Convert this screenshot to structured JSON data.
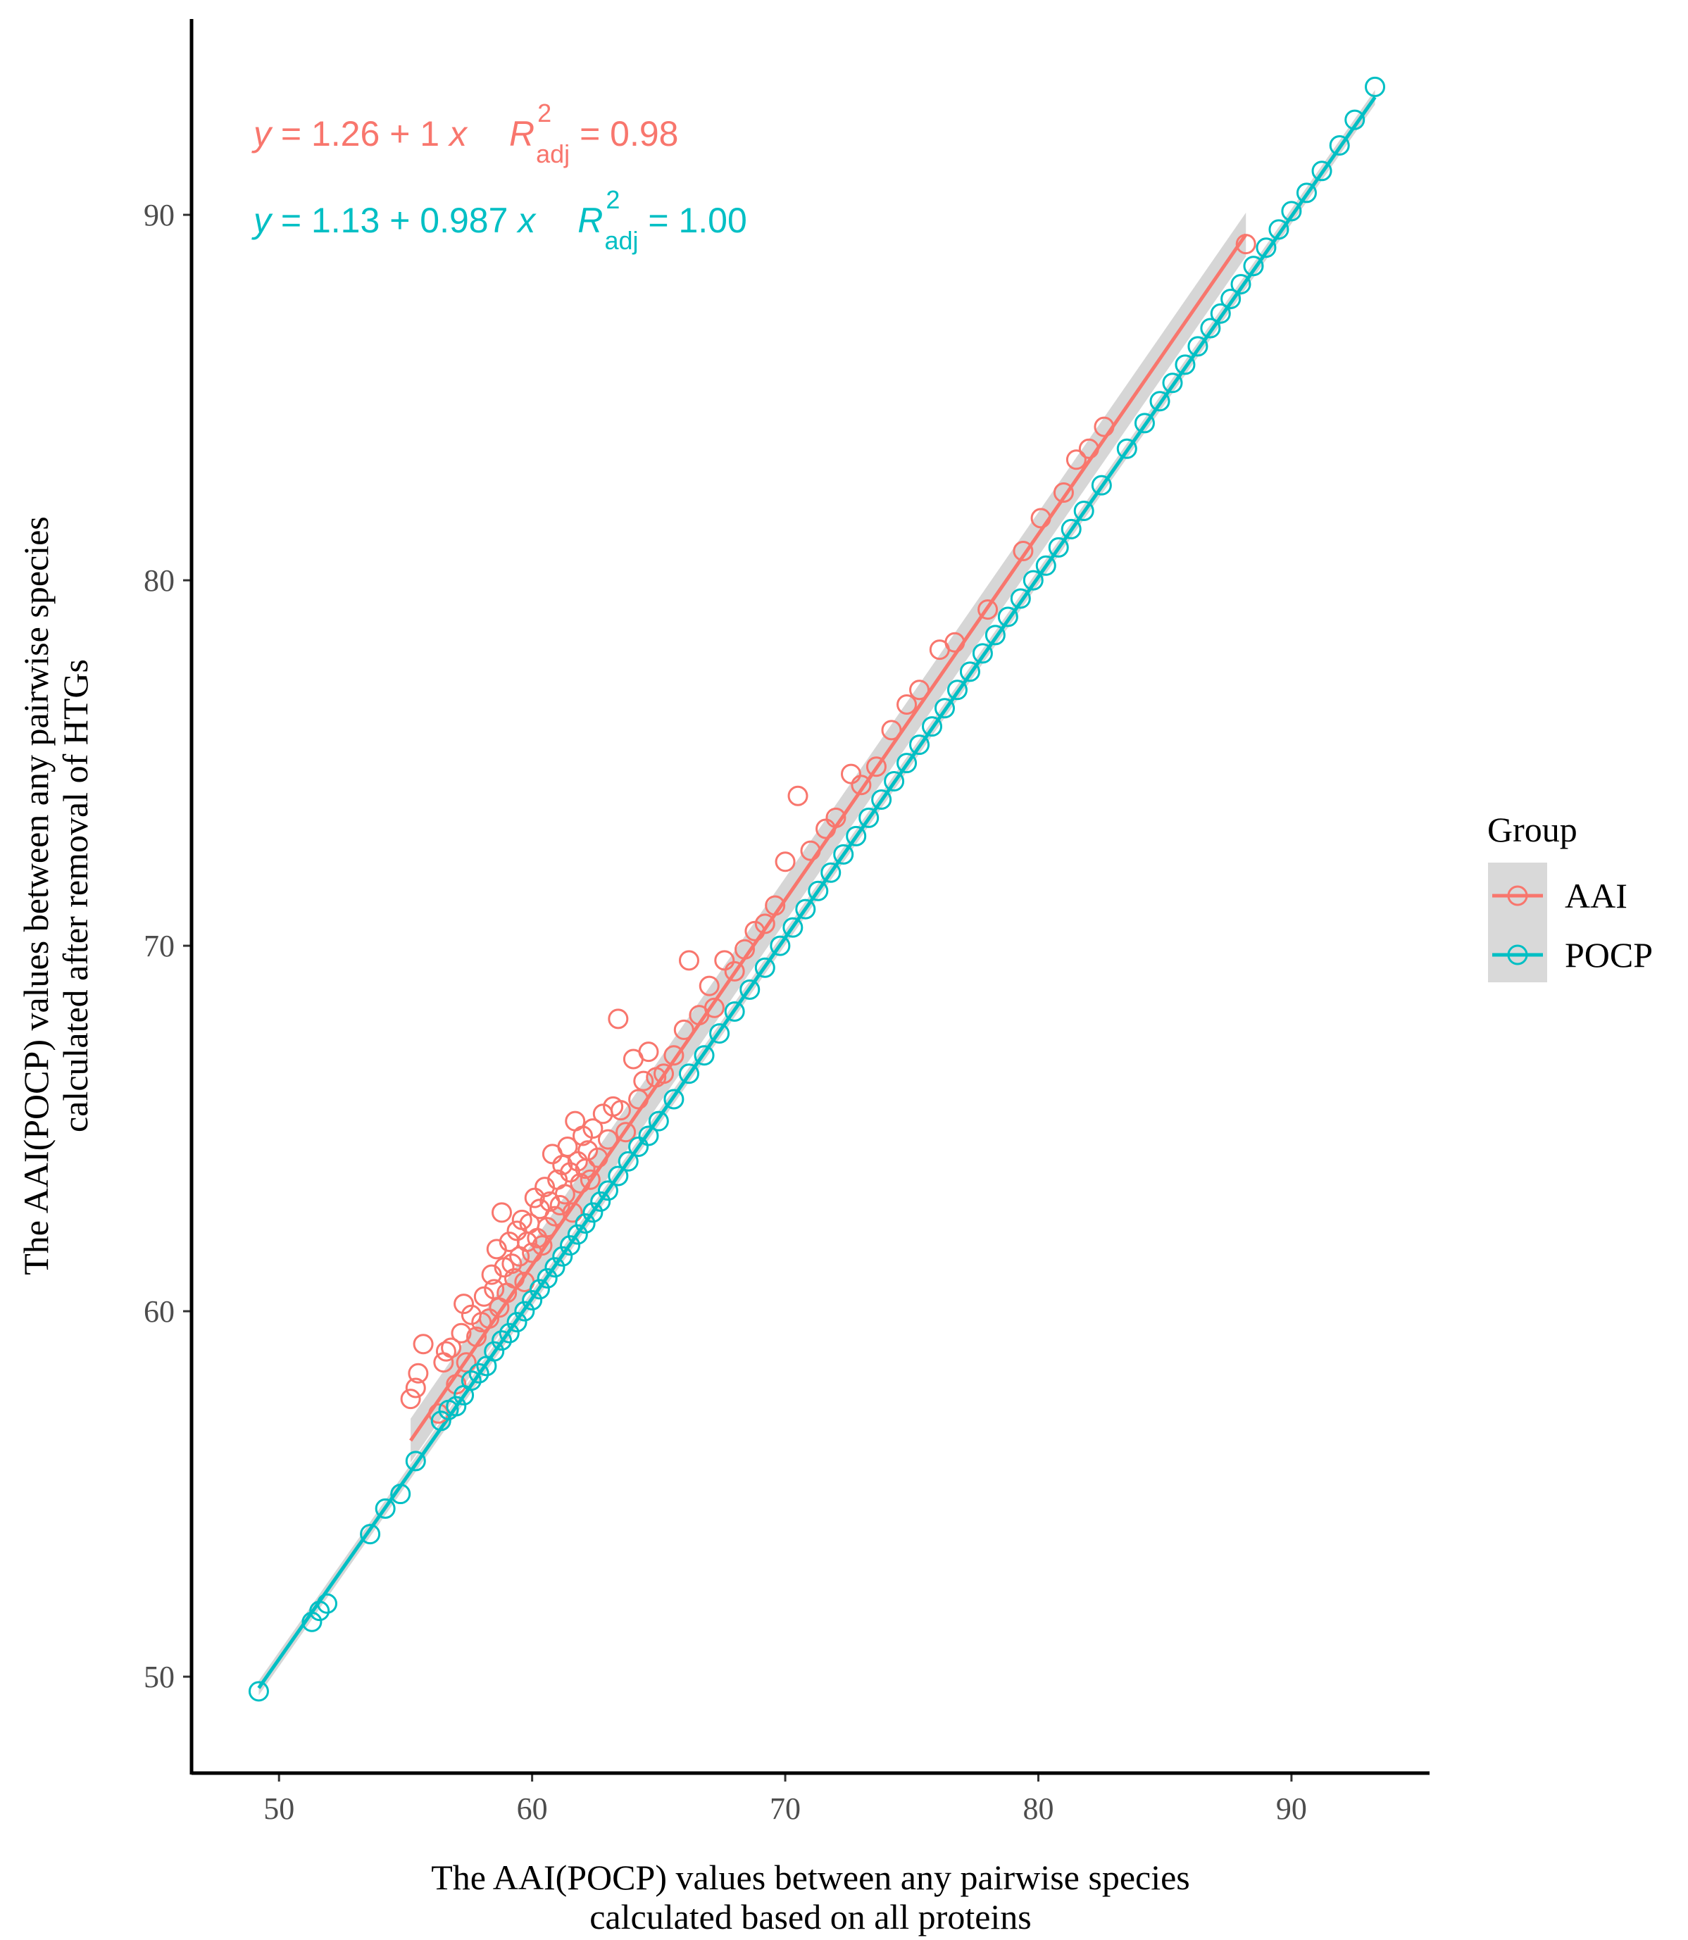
{
  "chart_data": {
    "type": "scatter",
    "xlabel": [
      "The AAI(POCP) values between any pairwise species",
      "calculated based on all proteins"
    ],
    "ylabel": [
      "The AAI(POCP) values between any pairwise species",
      "calculated after removal of HTGs"
    ],
    "xlim": [
      46.6,
      95.4
    ],
    "ylim": [
      47.4,
      95.3
    ],
    "x_ticks": [
      50,
      60,
      70,
      80,
      90
    ],
    "y_ticks": [
      50,
      60,
      70,
      80,
      90
    ],
    "x_tick_labels": [
      "50",
      "60",
      "70",
      "80",
      "90"
    ],
    "y_tick_labels": [
      "50",
      "60",
      "70",
      "80",
      "90"
    ],
    "grid": false,
    "legend": {
      "title": "Group",
      "position": "right",
      "entries": [
        "AAI",
        "POCP"
      ]
    },
    "series": [
      {
        "name": "AAI",
        "color": "#F8766D",
        "fit": {
          "intercept": 1.26,
          "slope": 1.0,
          "x_range": [
            55.2,
            88.2
          ]
        },
        "equation": {
          "lhs": "y",
          "eq": " = 1.26 + 1 ",
          "x": "x",
          "r": "R",
          "sup": "2",
          "sub": "adj",
          "val": " = 0.98"
        },
        "points": [
          [
            55.2,
            57.6
          ],
          [
            55.4,
            57.9
          ],
          [
            55.5,
            58.3
          ],
          [
            55.7,
            59.1
          ],
          [
            56.3,
            57.2
          ],
          [
            56.5,
            58.6
          ],
          [
            56.6,
            58.9
          ],
          [
            56.8,
            59.0
          ],
          [
            57.0,
            58.0
          ],
          [
            57.2,
            59.4
          ],
          [
            57.3,
            60.2
          ],
          [
            57.4,
            58.6
          ],
          [
            57.6,
            59.9
          ],
          [
            57.8,
            59.3
          ],
          [
            58.0,
            59.7
          ],
          [
            58.1,
            60.4
          ],
          [
            58.3,
            59.8
          ],
          [
            58.4,
            61.0
          ],
          [
            58.5,
            60.6
          ],
          [
            58.6,
            61.7
          ],
          [
            58.7,
            60.1
          ],
          [
            58.8,
            62.7
          ],
          [
            58.9,
            61.2
          ],
          [
            59.0,
            60.5
          ],
          [
            59.1,
            61.9
          ],
          [
            59.2,
            61.3
          ],
          [
            59.3,
            60.9
          ],
          [
            59.4,
            62.2
          ],
          [
            59.5,
            61.5
          ],
          [
            59.6,
            62.5
          ],
          [
            59.7,
            60.8
          ],
          [
            59.8,
            61.9
          ],
          [
            59.9,
            62.4
          ],
          [
            60.0,
            61.6
          ],
          [
            60.1,
            63.1
          ],
          [
            60.2,
            62.0
          ],
          [
            60.3,
            62.8
          ],
          [
            60.4,
            61.8
          ],
          [
            60.5,
            63.4
          ],
          [
            60.6,
            62.3
          ],
          [
            60.7,
            63.0
          ],
          [
            60.8,
            64.3
          ],
          [
            60.9,
            62.6
          ],
          [
            61.0,
            63.6
          ],
          [
            61.1,
            62.9
          ],
          [
            61.2,
            64.0
          ],
          [
            61.3,
            63.2
          ],
          [
            61.4,
            64.5
          ],
          [
            61.5,
            63.8
          ],
          [
            61.6,
            62.7
          ],
          [
            61.7,
            65.2
          ],
          [
            61.8,
            64.1
          ],
          [
            61.9,
            63.5
          ],
          [
            62.0,
            64.8
          ],
          [
            62.1,
            63.9
          ],
          [
            62.2,
            64.4
          ],
          [
            62.3,
            63.6
          ],
          [
            62.4,
            65.0
          ],
          [
            62.6,
            64.2
          ],
          [
            62.8,
            65.4
          ],
          [
            63.0,
            64.7
          ],
          [
            63.2,
            65.6
          ],
          [
            63.4,
            68.0
          ],
          [
            63.5,
            65.5
          ],
          [
            63.7,
            64.9
          ],
          [
            64.0,
            66.9
          ],
          [
            64.2,
            65.8
          ],
          [
            64.4,
            66.3
          ],
          [
            64.6,
            67.1
          ],
          [
            64.9,
            66.4
          ],
          [
            65.2,
            66.5
          ],
          [
            65.6,
            67.0
          ],
          [
            66.0,
            67.7
          ],
          [
            66.2,
            69.6
          ],
          [
            66.6,
            68.1
          ],
          [
            67.0,
            68.9
          ],
          [
            67.2,
            68.3
          ],
          [
            67.6,
            69.6
          ],
          [
            68.0,
            69.3
          ],
          [
            68.4,
            69.9
          ],
          [
            68.8,
            70.4
          ],
          [
            69.2,
            70.6
          ],
          [
            69.6,
            71.1
          ],
          [
            70.0,
            72.3
          ],
          [
            70.5,
            74.1
          ],
          [
            71.0,
            72.6
          ],
          [
            71.6,
            73.2
          ],
          [
            72.0,
            73.5
          ],
          [
            72.6,
            74.7
          ],
          [
            73.0,
            74.4
          ],
          [
            73.6,
            74.9
          ],
          [
            74.2,
            75.9
          ],
          [
            74.8,
            76.6
          ],
          [
            75.3,
            77.0
          ],
          [
            76.1,
            78.1
          ],
          [
            76.7,
            78.3
          ],
          [
            78.0,
            79.2
          ],
          [
            79.4,
            80.8
          ],
          [
            80.1,
            81.7
          ],
          [
            81.0,
            82.4
          ],
          [
            81.5,
            83.3
          ],
          [
            82.0,
            83.6
          ],
          [
            82.6,
            84.2
          ],
          [
            88.2,
            89.2
          ]
        ]
      },
      {
        "name": "POCP",
        "color": "#00BFC4",
        "fit": {
          "intercept": 1.13,
          "slope": 0.987,
          "x_range": [
            49.2,
            93.3
          ]
        },
        "equation": {
          "lhs": "y",
          "eq": " = 1.13 + 0.987 ",
          "x": "x",
          "r": "R",
          "sup": "2",
          "sub": "adj",
          "val": " = 1.00"
        },
        "points": [
          [
            49.2,
            49.6
          ],
          [
            51.3,
            51.5
          ],
          [
            51.6,
            51.8
          ],
          [
            51.9,
            52.0
          ],
          [
            53.6,
            53.9
          ],
          [
            54.2,
            54.6
          ],
          [
            54.8,
            55.0
          ],
          [
            55.4,
            55.9
          ],
          [
            56.4,
            57.0
          ],
          [
            56.7,
            57.3
          ],
          [
            57.0,
            57.4
          ],
          [
            57.3,
            57.7
          ],
          [
            57.6,
            58.1
          ],
          [
            57.9,
            58.3
          ],
          [
            58.2,
            58.5
          ],
          [
            58.5,
            58.9
          ],
          [
            58.8,
            59.2
          ],
          [
            59.1,
            59.4
          ],
          [
            59.4,
            59.7
          ],
          [
            59.7,
            60.0
          ],
          [
            60.0,
            60.3
          ],
          [
            60.3,
            60.6
          ],
          [
            60.6,
            60.9
          ],
          [
            60.9,
            61.2
          ],
          [
            61.2,
            61.5
          ],
          [
            61.5,
            61.8
          ],
          [
            61.8,
            62.1
          ],
          [
            62.1,
            62.4
          ],
          [
            62.4,
            62.7
          ],
          [
            62.7,
            63.0
          ],
          [
            63.0,
            63.3
          ],
          [
            63.4,
            63.7
          ],
          [
            63.8,
            64.1
          ],
          [
            64.2,
            64.5
          ],
          [
            64.6,
            64.8
          ],
          [
            65.0,
            65.2
          ],
          [
            65.6,
            65.8
          ],
          [
            66.2,
            66.5
          ],
          [
            66.8,
            67.0
          ],
          [
            67.4,
            67.6
          ],
          [
            68.0,
            68.2
          ],
          [
            68.6,
            68.8
          ],
          [
            69.2,
            69.4
          ],
          [
            69.8,
            70.0
          ],
          [
            70.3,
            70.5
          ],
          [
            70.8,
            71.0
          ],
          [
            71.3,
            71.5
          ],
          [
            71.8,
            72.0
          ],
          [
            72.3,
            72.5
          ],
          [
            72.8,
            73.0
          ],
          [
            73.3,
            73.5
          ],
          [
            73.8,
            74.0
          ],
          [
            74.3,
            74.5
          ],
          [
            74.8,
            75.0
          ],
          [
            75.3,
            75.5
          ],
          [
            75.8,
            76.0
          ],
          [
            76.3,
            76.5
          ],
          [
            76.8,
            77.0
          ],
          [
            77.3,
            77.5
          ],
          [
            77.8,
            78.0
          ],
          [
            78.3,
            78.5
          ],
          [
            78.8,
            79.0
          ],
          [
            79.3,
            79.5
          ],
          [
            79.8,
            80.0
          ],
          [
            80.3,
            80.4
          ],
          [
            80.8,
            80.9
          ],
          [
            81.3,
            81.4
          ],
          [
            81.8,
            81.9
          ],
          [
            82.5,
            82.6
          ],
          [
            83.5,
            83.6
          ],
          [
            84.2,
            84.3
          ],
          [
            84.8,
            84.9
          ],
          [
            85.3,
            85.4
          ],
          [
            85.8,
            85.9
          ],
          [
            86.3,
            86.4
          ],
          [
            86.8,
            86.9
          ],
          [
            87.2,
            87.3
          ],
          [
            87.6,
            87.7
          ],
          [
            88.0,
            88.1
          ],
          [
            88.5,
            88.6
          ],
          [
            89.0,
            89.1
          ],
          [
            89.5,
            89.6
          ],
          [
            90.0,
            90.1
          ],
          [
            90.6,
            90.6
          ],
          [
            91.2,
            91.2
          ],
          [
            91.9,
            91.9
          ],
          [
            92.5,
            92.6
          ],
          [
            93.3,
            93.5
          ]
        ]
      }
    ]
  }
}
